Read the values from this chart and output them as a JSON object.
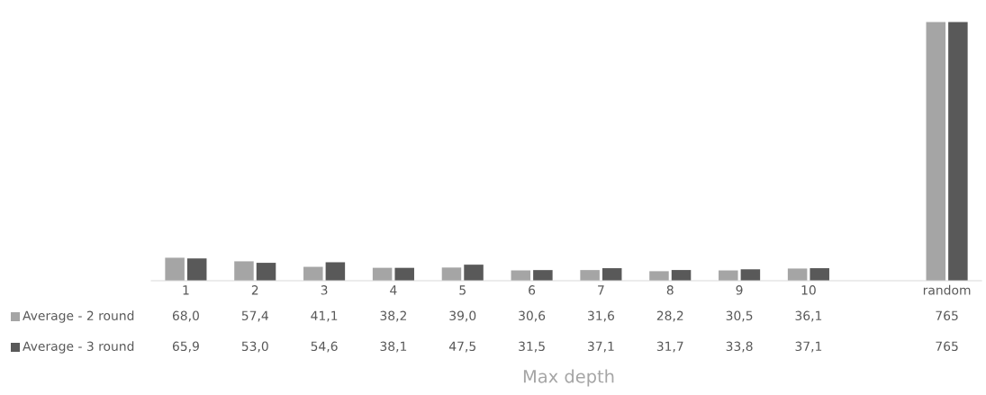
{
  "chart_data": {
    "type": "bar",
    "xlabel": "Max depth",
    "categories": [
      "1",
      "2",
      "3",
      "4",
      "5",
      "6",
      "7",
      "8",
      "9",
      "10",
      null,
      "random"
    ],
    "series": [
      {
        "name": "Average - 2 round",
        "color": "#a5a5a5",
        "values": [
          68.0,
          57.4,
          41.1,
          38.2,
          39.0,
          30.6,
          31.6,
          28.2,
          30.5,
          36.1,
          null,
          765
        ],
        "value_labels": [
          "68,0",
          "57,4",
          "41,1",
          "38,2",
          "39,0",
          "30,6",
          "31,6",
          "28,2",
          "30,5",
          "36,1",
          null,
          "765"
        ]
      },
      {
        "name": "Average - 3 round",
        "color": "#595959",
        "values": [
          65.9,
          53.0,
          54.6,
          38.1,
          47.5,
          31.5,
          37.1,
          31.7,
          33.8,
          37.1,
          null,
          765
        ],
        "value_labels": [
          "65,9",
          "53,0",
          "54,6",
          "38,1",
          "47,5",
          "31,5",
          "37,1",
          "31,7",
          "33,8",
          "37,1",
          null,
          "765"
        ]
      }
    ],
    "grid": false,
    "legend": "bottom left"
  }
}
